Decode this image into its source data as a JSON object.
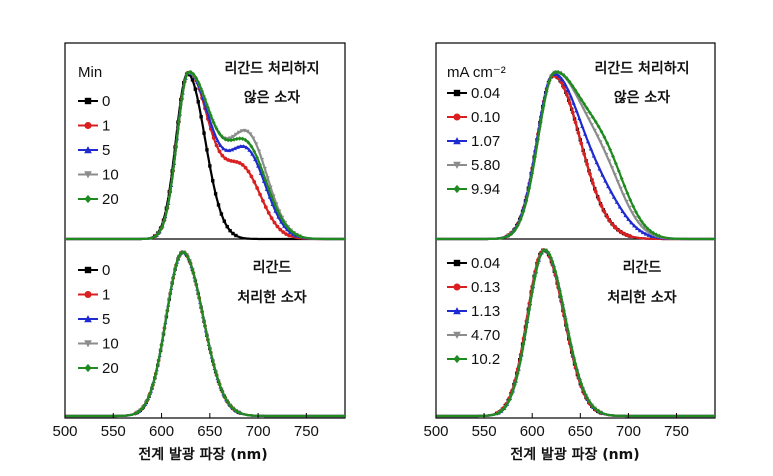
{
  "chart_data": [
    {
      "type": "line",
      "title": "",
      "xlabel": "전계 발광 파장 (nm)",
      "ylabel": "",
      "xlim": [
        500,
        790
      ],
      "x_ticks": [
        "500",
        "550",
        "600",
        "650",
        "700",
        "750"
      ],
      "panels": [
        {
          "id": "left-top",
          "legend_title": "Min",
          "annotation": [
            "리간드 처리하지",
            "않은 소자"
          ],
          "series": [
            {
              "name": "0",
              "color": "#000000",
              "marker": "square",
              "peak": 627,
              "sigma_left": 12,
              "sigma_right": 18,
              "shoulder": 0.0,
              "shoulder_center": 685,
              "shoulder_width": 22
            },
            {
              "name": "1",
              "color": "#d91f1f",
              "marker": "circle",
              "peak": 628,
              "sigma_left": 12,
              "sigma_right": 21,
              "shoulder": 0.42,
              "shoulder_center": 683,
              "shoulder_width": 20
            },
            {
              "name": "5",
              "color": "#1f2bd1",
              "marker": "triangle",
              "peak": 628,
              "sigma_left": 12,
              "sigma_right": 23,
              "shoulder": 0.52,
              "shoulder_center": 688,
              "shoulder_width": 20
            },
            {
              "name": "10",
              "color": "#8c8c8c",
              "marker": "tri-down",
              "peak": 628,
              "sigma_left": 12,
              "sigma_right": 25,
              "shoulder": 0.6,
              "shoulder_center": 690,
              "shoulder_width": 20
            },
            {
              "name": "20",
              "color": "#1f8a1f",
              "marker": "diamond",
              "peak": 628,
              "sigma_left": 12,
              "sigma_right": 24,
              "shoulder": 0.55,
              "shoulder_center": 688,
              "shoulder_width": 21
            }
          ]
        },
        {
          "id": "left-bottom",
          "legend_title": "",
          "annotation": [
            "리간드",
            "처리한 소자"
          ],
          "series": [
            {
              "name": "0",
              "color": "#000000",
              "marker": "square",
              "peak": 622,
              "sigma_left": 17,
              "sigma_right": 21,
              "shoulder": 0,
              "shoulder_center": 680,
              "shoulder_width": 20
            },
            {
              "name": "1",
              "color": "#d91f1f",
              "marker": "circle",
              "peak": 622,
              "sigma_left": 17,
              "sigma_right": 21,
              "shoulder": 0,
              "shoulder_center": 680,
              "shoulder_width": 20
            },
            {
              "name": "5",
              "color": "#1f2bd1",
              "marker": "triangle",
              "peak": 622,
              "sigma_left": 17,
              "sigma_right": 21,
              "shoulder": 0,
              "shoulder_center": 680,
              "shoulder_width": 20
            },
            {
              "name": "10",
              "color": "#8c8c8c",
              "marker": "tri-down",
              "peak": 622,
              "sigma_left": 17,
              "sigma_right": 21,
              "shoulder": 0,
              "shoulder_center": 680,
              "shoulder_width": 20
            },
            {
              "name": "20",
              "color": "#1f8a1f",
              "marker": "diamond",
              "peak": 622,
              "sigma_left": 17,
              "sigma_right": 21,
              "shoulder": 0,
              "shoulder_center": 680,
              "shoulder_width": 20
            }
          ]
        },
        {
          "id": "right-top",
          "legend_title": "mA cm⁻²",
          "annotation": [
            "리간드 처리하지",
            "않은 소자"
          ],
          "series": [
            {
              "name": "0.04",
              "color": "#000000",
              "marker": "square",
              "peak": 622,
              "sigma_left": 17,
              "sigma_right": 28,
              "shoulder": 0.0,
              "shoulder_center": 680,
              "shoulder_width": 22
            },
            {
              "name": "0.10",
              "color": "#d91f1f",
              "marker": "circle",
              "peak": 622,
              "sigma_left": 17,
              "sigma_right": 28,
              "shoulder": 0.0,
              "shoulder_center": 680,
              "shoulder_width": 22
            },
            {
              "name": "1.07",
              "color": "#1f2bd1",
              "marker": "triangle",
              "peak": 622,
              "sigma_left": 17,
              "sigma_right": 29,
              "shoulder": 0.18,
              "shoulder_center": 675,
              "shoulder_width": 22
            },
            {
              "name": "5.80",
              "color": "#8c8c8c",
              "marker": "tri-down",
              "peak": 623,
              "sigma_left": 17,
              "sigma_right": 30,
              "shoulder": 0.32,
              "shoulder_center": 675,
              "shoulder_width": 22
            },
            {
              "name": "9.94",
              "color": "#1f8a1f",
              "marker": "diamond",
              "peak": 623,
              "sigma_left": 17,
              "sigma_right": 31,
              "shoulder": 0.38,
              "shoulder_center": 677,
              "shoulder_width": 22
            }
          ]
        },
        {
          "id": "right-bottom",
          "legend_title": "",
          "annotation": [
            "리간드",
            "처리한 소자"
          ],
          "series": [
            {
              "name": "0.04",
              "color": "#000000",
              "marker": "square",
              "peak": 612,
              "sigma_left": 17,
              "sigma_right": 21,
              "shoulder": 0,
              "shoulder_center": 680,
              "shoulder_width": 20
            },
            {
              "name": "0.13",
              "color": "#d91f1f",
              "marker": "circle",
              "peak": 612,
              "sigma_left": 17,
              "sigma_right": 21,
              "shoulder": 0,
              "shoulder_center": 680,
              "shoulder_width": 20
            },
            {
              "name": "1.13",
              "color": "#1f2bd1",
              "marker": "triangle",
              "peak": 613,
              "sigma_left": 17,
              "sigma_right": 21,
              "shoulder": 0,
              "shoulder_center": 680,
              "shoulder_width": 20
            },
            {
              "name": "4.70",
              "color": "#8c8c8c",
              "marker": "tri-down",
              "peak": 613,
              "sigma_left": 17,
              "sigma_right": 21,
              "shoulder": 0,
              "shoulder_center": 680,
              "shoulder_width": 20
            },
            {
              "name": "10.2",
              "color": "#1f8a1f",
              "marker": "diamond",
              "peak": 613,
              "sigma_left": 17,
              "sigma_right": 21,
              "shoulder": 0,
              "shoulder_center": 680,
              "shoulder_width": 20
            }
          ]
        }
      ]
    }
  ]
}
